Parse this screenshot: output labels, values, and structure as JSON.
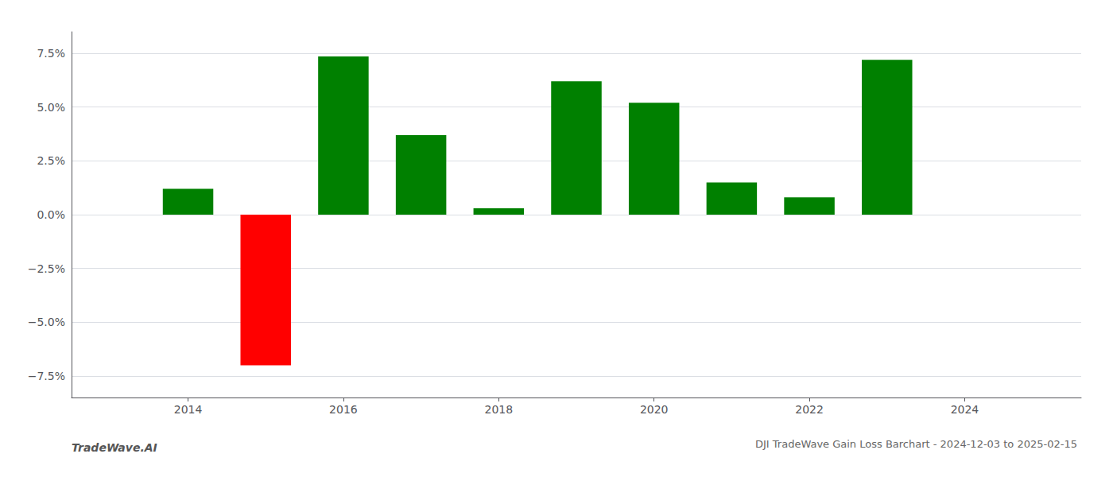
{
  "chart_data": {
    "type": "bar",
    "title": "DJI TradeWave Gain Loss Barchart - 2024-12-03 to 2025-02-15",
    "annotations": [
      "TradeWave.AI"
    ],
    "x": [
      2014,
      2015,
      2016,
      2017,
      2018,
      2019,
      2020,
      2021,
      2022,
      2023
    ],
    "values": [
      1.2,
      -7.0,
      7.35,
      3.7,
      0.3,
      6.2,
      5.2,
      1.5,
      0.8,
      7.2
    ],
    "colors": [
      "#008000",
      "#ff0000",
      "#008000",
      "#008000",
      "#008000",
      "#008000",
      "#008000",
      "#008000",
      "#008000",
      "#008000"
    ],
    "xlim": [
      2012.5,
      2025.5
    ],
    "xticks": [
      2014,
      2016,
      2018,
      2020,
      2022,
      2024
    ],
    "ylim": [
      -8.5,
      8.5
    ],
    "yticks": [
      {
        "value": -7.5,
        "label": "−7.5%"
      },
      {
        "value": -5.0,
        "label": "−5.0%"
      },
      {
        "value": -2.5,
        "label": "−2.5%"
      },
      {
        "value": 0.0,
        "label": "0.0%"
      },
      {
        "value": 2.5,
        "label": "2.5%"
      },
      {
        "value": 5.0,
        "label": "5.0%"
      },
      {
        "value": 7.5,
        "label": "7.5%"
      }
    ],
    "grid": true
  }
}
